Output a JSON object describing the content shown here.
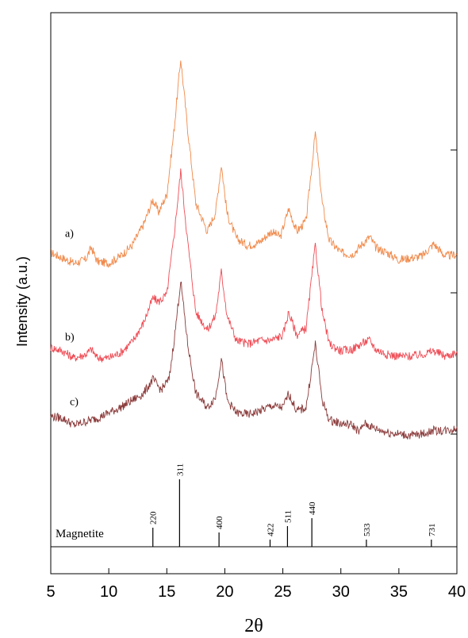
{
  "chart_data": {
    "type": "line",
    "xlabel": "2θ",
    "ylabel": "Intensity (a.u.)",
    "xlim": [
      5,
      40
    ],
    "x_ticks": [
      "5",
      "10",
      "15",
      "20",
      "25",
      "30",
      "35",
      "40"
    ],
    "grid": false,
    "legend": "none",
    "series": [
      {
        "name": "a)",
        "color": "#f08a4b",
        "points": [
          [
            5,
            0.12
          ],
          [
            6,
            0.09
          ],
          [
            7,
            0.06
          ],
          [
            8,
            0.08
          ],
          [
            8.5,
            0.15
          ],
          [
            9,
            0.07
          ],
          [
            10,
            0.06
          ],
          [
            11,
            0.1
          ],
          [
            12,
            0.16
          ],
          [
            13,
            0.28
          ],
          [
            13.8,
            0.42
          ],
          [
            14.3,
            0.35
          ],
          [
            15,
            0.45
          ],
          [
            15.6,
            0.8
          ],
          [
            16.2,
            1.22
          ],
          [
            16.8,
            0.82
          ],
          [
            17.5,
            0.4
          ],
          [
            18.5,
            0.24
          ],
          [
            19.2,
            0.35
          ],
          [
            19.7,
            0.62
          ],
          [
            20.2,
            0.34
          ],
          [
            21,
            0.2
          ],
          [
            22,
            0.16
          ],
          [
            23,
            0.18
          ],
          [
            24,
            0.24
          ],
          [
            24.8,
            0.21
          ],
          [
            25.5,
            0.37
          ],
          [
            26.2,
            0.24
          ],
          [
            27,
            0.3
          ],
          [
            27.8,
            0.8
          ],
          [
            28.4,
            0.4
          ],
          [
            29,
            0.19
          ],
          [
            30,
            0.12
          ],
          [
            31,
            0.11
          ],
          [
            32,
            0.18
          ],
          [
            32.5,
            0.21
          ],
          [
            33,
            0.15
          ],
          [
            34,
            0.12
          ],
          [
            35,
            0.08
          ],
          [
            36,
            0.09
          ],
          [
            37,
            0.1
          ],
          [
            38,
            0.17
          ],
          [
            39,
            0.1
          ],
          [
            40,
            0.11
          ]
        ]
      },
      {
        "name": "b)",
        "color": "#ef4c55",
        "points": [
          [
            5,
            0.1
          ],
          [
            6,
            0.08
          ],
          [
            7,
            0.04
          ],
          [
            8,
            0.06
          ],
          [
            8.5,
            0.09
          ],
          [
            9,
            0.04
          ],
          [
            10,
            0.04
          ],
          [
            11,
            0.07
          ],
          [
            12,
            0.13
          ],
          [
            13,
            0.24
          ],
          [
            13.8,
            0.38
          ],
          [
            14.3,
            0.36
          ],
          [
            15,
            0.4
          ],
          [
            15.6,
            0.72
          ],
          [
            16.2,
            1.1
          ],
          [
            16.8,
            0.7
          ],
          [
            17.5,
            0.3
          ],
          [
            18.5,
            0.2
          ],
          [
            19.2,
            0.28
          ],
          [
            19.7,
            0.53
          ],
          [
            20.2,
            0.28
          ],
          [
            21,
            0.14
          ],
          [
            22,
            0.12
          ],
          [
            23,
            0.14
          ],
          [
            24,
            0.14
          ],
          [
            25,
            0.17
          ],
          [
            25.5,
            0.3
          ],
          [
            26.2,
            0.17
          ],
          [
            27,
            0.21
          ],
          [
            27.8,
            0.68
          ],
          [
            28.4,
            0.3
          ],
          [
            29,
            0.12
          ],
          [
            30,
            0.08
          ],
          [
            31,
            0.09
          ],
          [
            32,
            0.13
          ],
          [
            32.5,
            0.14
          ],
          [
            33,
            0.09
          ],
          [
            34,
            0.06
          ],
          [
            35,
            0.05
          ],
          [
            36,
            0.05
          ],
          [
            37,
            0.06
          ],
          [
            38,
            0.08
          ],
          [
            39,
            0.05
          ],
          [
            40,
            0.07
          ]
        ]
      },
      {
        "name": "c)",
        "color": "#8b3a3a",
        "points": [
          [
            5,
            0.15
          ],
          [
            6,
            0.14
          ],
          [
            7,
            0.1
          ],
          [
            8,
            0.12
          ],
          [
            9,
            0.14
          ],
          [
            10,
            0.17
          ],
          [
            11,
            0.2
          ],
          [
            12,
            0.24
          ],
          [
            13,
            0.28
          ],
          [
            13.8,
            0.36
          ],
          [
            14.5,
            0.3
          ],
          [
            15.2,
            0.36
          ],
          [
            15.7,
            0.62
          ],
          [
            16.2,
            0.92
          ],
          [
            16.8,
            0.56
          ],
          [
            17.5,
            0.28
          ],
          [
            18.5,
            0.2
          ],
          [
            19.2,
            0.26
          ],
          [
            19.7,
            0.48
          ],
          [
            20.2,
            0.24
          ],
          [
            21,
            0.17
          ],
          [
            22,
            0.16
          ],
          [
            23,
            0.18
          ],
          [
            24,
            0.21
          ],
          [
            25,
            0.2
          ],
          [
            25.5,
            0.28
          ],
          [
            26.2,
            0.18
          ],
          [
            27,
            0.2
          ],
          [
            27.8,
            0.56
          ],
          [
            28.4,
            0.24
          ],
          [
            29,
            0.13
          ],
          [
            30,
            0.11
          ],
          [
            31,
            0.1
          ],
          [
            31.6,
            0.06
          ],
          [
            32,
            0.11
          ],
          [
            33,
            0.08
          ],
          [
            34,
            0.06
          ],
          [
            35,
            0.05
          ],
          [
            36,
            0.04
          ],
          [
            37,
            0.05
          ],
          [
            38,
            0.07
          ],
          [
            39,
            0.07
          ],
          [
            40,
            0.08
          ]
        ]
      }
    ],
    "reference": {
      "name": "Magnetite",
      "peaks": [
        {
          "x": 13.8,
          "intensity": 0.24,
          "hkl": "220"
        },
        {
          "x": 16.1,
          "intensity": 0.85,
          "hkl": "311"
        },
        {
          "x": 19.5,
          "intensity": 0.18,
          "hkl": "400"
        },
        {
          "x": 23.9,
          "intensity": 0.09,
          "hkl": "422"
        },
        {
          "x": 25.4,
          "intensity": 0.26,
          "hkl": "511"
        },
        {
          "x": 27.5,
          "intensity": 0.36,
          "hkl": "440"
        },
        {
          "x": 32.2,
          "intensity": 0.09,
          "hkl": "533"
        },
        {
          "x": 37.8,
          "intensity": 0.09,
          "hkl": "731"
        }
      ]
    }
  }
}
